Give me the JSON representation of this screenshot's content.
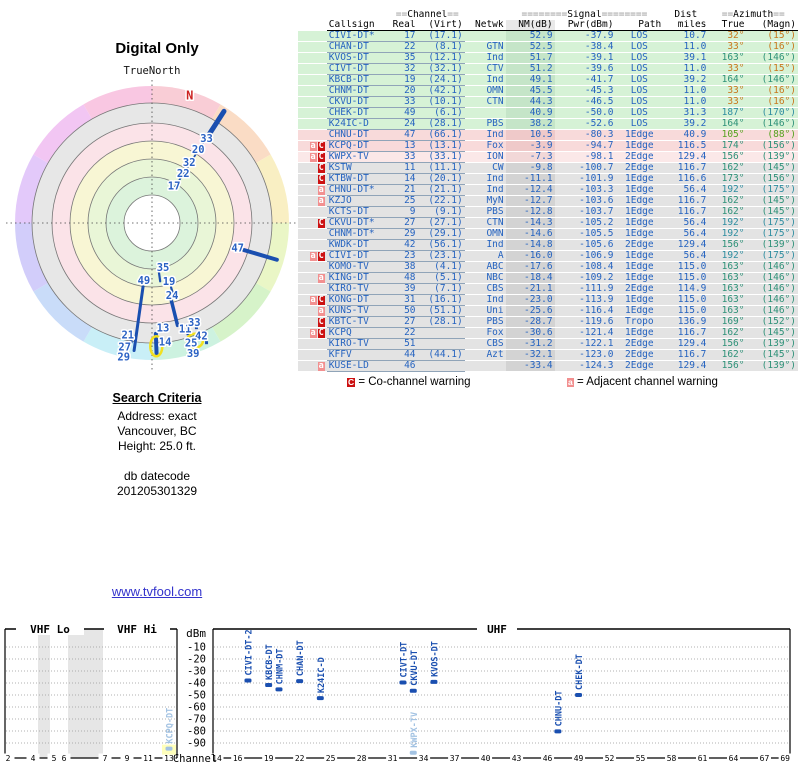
{
  "page_title": "Digital Only",
  "radar_header": {
    "true_north": "TrueNorth",
    "magnetic_north": "N"
  },
  "search_criteria": {
    "heading": "Search Criteria",
    "address_line": "Address: exact",
    "city_line": "Vancouver, BC",
    "height_line": "Height: 25.0 ft."
  },
  "datecode": {
    "line1": "db datecode",
    "line2": "201205301329"
  },
  "link": {
    "text": "www.tvfool.com"
  },
  "table": {
    "header": {
      "eq2": "==",
      "eq8": "========",
      "channel": "Channel",
      "signal": "Signal",
      "dist": "Dist",
      "azimuth": "Azimuth",
      "callsign": "Callsign",
      "real": "Real",
      "virt": "(Virt)",
      "netwk": "Netwk",
      "nm": "NM(dB)",
      "pwr": "Pwr(dBm)",
      "path": "Path",
      "miles": "miles",
      "true": "True",
      "magn": "(Magn)"
    },
    "rows": [
      {
        "warn": "",
        "callsign": "CIVI-DT*",
        "real": "17",
        "virt": "(17.1)",
        "netwk": "",
        "nm": "52.9",
        "pwr": "-37.9",
        "path": "LOS",
        "miles": "10.7",
        "true": "32°",
        "magn": "(15°)",
        "band": "green",
        "azc": "orange"
      },
      {
        "warn": "",
        "callsign": "CHAN-DT",
        "real": "22",
        "virt": "(8.1)",
        "netwk": "GTN",
        "nm": "52.5",
        "pwr": "-38.4",
        "path": "LOS",
        "miles": "11.0",
        "true": "33°",
        "magn": "(16°)",
        "band": "green",
        "azc": "orange"
      },
      {
        "warn": "",
        "callsign": "KVOS-DT",
        "real": "35",
        "virt": "(12.1)",
        "netwk": "Ind",
        "nm": "51.7",
        "pwr": "-39.1",
        "path": "LOS",
        "miles": "39.1",
        "true": "163°",
        "magn": "(146°)",
        "band": "green",
        "azc": "teal"
      },
      {
        "warn": "",
        "callsign": "CIVT-DT",
        "real": "32",
        "virt": "(32.1)",
        "netwk": "CTV",
        "nm": "51.2",
        "pwr": "-39.6",
        "path": "LOS",
        "miles": "11.0",
        "true": "33°",
        "magn": "(15°)",
        "band": "green",
        "azc": "orange"
      },
      {
        "warn": "",
        "callsign": "KBCB-DT",
        "real": "19",
        "virt": "(24.1)",
        "netwk": "Ind",
        "nm": "49.1",
        "pwr": "-41.7",
        "path": "LOS",
        "miles": "39.2",
        "true": "164°",
        "magn": "(146°)",
        "band": "green",
        "azc": "teal"
      },
      {
        "warn": "",
        "callsign": "CHNM-DT",
        "real": "20",
        "virt": "(42.1)",
        "netwk": "OMN",
        "nm": "45.5",
        "pwr": "-45.3",
        "path": "LOS",
        "miles": "11.0",
        "true": "33°",
        "magn": "(16°)",
        "band": "green",
        "azc": "orange"
      },
      {
        "warn": "",
        "callsign": "CKVU-DT",
        "real": "33",
        "virt": "(10.1)",
        "netwk": "CTN",
        "nm": "44.3",
        "pwr": "-46.5",
        "path": "LOS",
        "miles": "11.0",
        "true": "33°",
        "magn": "(16°)",
        "band": "green",
        "azc": "orange"
      },
      {
        "warn": "",
        "callsign": "CHEK-DT",
        "real": "49",
        "virt": "(6.1)",
        "netwk": "",
        "nm": "40.9",
        "pwr": "-50.0",
        "path": "LOS",
        "miles": "31.3",
        "true": "187°",
        "magn": "(170°)",
        "band": "green",
        "azc": "tealblue"
      },
      {
        "warn": "",
        "callsign": "K24IC-D",
        "real": "24",
        "virt": "(28.1)",
        "netwk": "PBS",
        "nm": "38.2",
        "pwr": "-52.6",
        "path": "LOS",
        "miles": "39.2",
        "true": "164°",
        "magn": "(146°)",
        "band": "green",
        "azc": "teal"
      },
      {
        "warn": "",
        "callsign": "CHNU-DT",
        "real": "47",
        "virt": "(66.1)",
        "netwk": "Ind",
        "nm": "10.5",
        "pwr": "-80.3",
        "path": "1Edge",
        "miles": "40.9",
        "true": "105°",
        "magn": "(88°)",
        "band": "pink",
        "azc": "green"
      },
      {
        "warn": "aC",
        "callsign": "KCPQ-DT",
        "real": "13",
        "virt": "(13.1)",
        "netwk": "Fox",
        "nm": "-3.9",
        "pwr": "-94.7",
        "path": "1Edge",
        "miles": "116.5",
        "true": "174°",
        "magn": "(156°)",
        "band": "pink",
        "azc": "teal"
      },
      {
        "warn": "aC",
        "callsign": "KWPX-TV",
        "real": "33",
        "virt": "(33.1)",
        "netwk": "ION",
        "nm": "-7.3",
        "pwr": "-98.1",
        "path": "2Edge",
        "miles": "129.4",
        "true": "156°",
        "magn": "(139°)",
        "band": "pink2",
        "azc": "teal"
      },
      {
        "warn": "C",
        "callsign": "KSTW",
        "real": "11",
        "virt": "(11.1)",
        "netwk": "CW",
        "nm": "-9.8",
        "pwr": "-100.7",
        "path": "2Edge",
        "miles": "116.7",
        "true": "162°",
        "magn": "(145°)",
        "band": "gray",
        "azc": "teal"
      },
      {
        "warn": "C",
        "callsign": "KTBW-DT",
        "real": "14",
        "virt": "(20.1)",
        "netwk": "Ind",
        "nm": "-11.1",
        "pwr": "-101.9",
        "path": "1Edge",
        "miles": "116.6",
        "true": "173°",
        "magn": "(156°)",
        "band": "gray",
        "azc": "teal"
      },
      {
        "warn": "a",
        "callsign": "CHNU-DT*",
        "real": "21",
        "virt": "(21.1)",
        "netwk": "Ind",
        "nm": "-12.4",
        "pwr": "-103.3",
        "path": "1Edge",
        "miles": "56.4",
        "true": "192°",
        "magn": "(175°)",
        "band": "gray",
        "azc": "tealblue"
      },
      {
        "warn": "a",
        "callsign": "KZJO",
        "real": "25",
        "virt": "(22.1)",
        "netwk": "MyN",
        "nm": "-12.7",
        "pwr": "-103.6",
        "path": "1Edge",
        "miles": "116.7",
        "true": "162°",
        "magn": "(145°)",
        "band": "gray",
        "azc": "teal"
      },
      {
        "warn": "",
        "callsign": "KCTS-DT",
        "real": "9",
        "virt": "(9.1)",
        "netwk": "PBS",
        "nm": "-12.8",
        "pwr": "-103.7",
        "path": "1Edge",
        "miles": "116.7",
        "true": "162°",
        "magn": "(145°)",
        "band": "gray",
        "azc": "teal"
      },
      {
        "warn": "C",
        "callsign": "CKVU-DT*",
        "real": "27",
        "virt": "(27.1)",
        "netwk": "CTN",
        "nm": "-14.3",
        "pwr": "-105.2",
        "path": "1Edge",
        "miles": "56.4",
        "true": "192°",
        "magn": "(175°)",
        "band": "gray",
        "azc": "tealblue"
      },
      {
        "warn": "",
        "callsign": "CHNM-DT*",
        "real": "29",
        "virt": "(29.1)",
        "netwk": "OMN",
        "nm": "-14.6",
        "pwr": "-105.5",
        "path": "1Edge",
        "miles": "56.4",
        "true": "192°",
        "magn": "(175°)",
        "band": "gray",
        "azc": "tealblue"
      },
      {
        "warn": "",
        "callsign": "KWDK-DT",
        "real": "42",
        "virt": "(56.1)",
        "netwk": "Ind",
        "nm": "-14.8",
        "pwr": "-105.6",
        "path": "2Edge",
        "miles": "129.4",
        "true": "156°",
        "magn": "(139°)",
        "band": "gray",
        "azc": "teal"
      },
      {
        "warn": "aC",
        "callsign": "CIVI-DT",
        "real": "23",
        "virt": "(23.1)",
        "netwk": "A",
        "nm": "-16.0",
        "pwr": "-106.9",
        "path": "1Edge",
        "miles": "56.4",
        "true": "192°",
        "magn": "(175°)",
        "band": "gray",
        "azc": "tealblue"
      },
      {
        "warn": "",
        "callsign": "KOMO-TV",
        "real": "38",
        "virt": "(4.1)",
        "netwk": "ABC",
        "nm": "-17.6",
        "pwr": "-108.4",
        "path": "1Edge",
        "miles": "115.0",
        "true": "163°",
        "magn": "(146°)",
        "band": "gray",
        "azc": "teal"
      },
      {
        "warn": "a",
        "callsign": "KING-DT",
        "real": "48",
        "virt": "(5.1)",
        "netwk": "NBC",
        "nm": "-18.4",
        "pwr": "-109.2",
        "path": "1Edge",
        "miles": "115.0",
        "true": "163°",
        "magn": "(146°)",
        "band": "gray",
        "azc": "teal"
      },
      {
        "warn": "",
        "callsign": "KIRO-TV",
        "real": "39",
        "virt": "(7.1)",
        "netwk": "CBS",
        "nm": "-21.1",
        "pwr": "-111.9",
        "path": "2Edge",
        "miles": "114.9",
        "true": "163°",
        "magn": "(146°)",
        "band": "gray",
        "azc": "teal"
      },
      {
        "warn": "aC",
        "callsign": "KONG-DT",
        "real": "31",
        "virt": "(16.1)",
        "netwk": "Ind",
        "nm": "-23.0",
        "pwr": "-113.9",
        "path": "1Edge",
        "miles": "115.0",
        "true": "163°",
        "magn": "(146°)",
        "band": "gray",
        "azc": "teal"
      },
      {
        "warn": "a",
        "callsign": "KUNS-TV",
        "real": "50",
        "virt": "(51.1)",
        "netwk": "Uni",
        "nm": "-25.6",
        "pwr": "-116.4",
        "path": "1Edge",
        "miles": "115.0",
        "true": "163°",
        "magn": "(146°)",
        "band": "gray",
        "azc": "teal"
      },
      {
        "warn": "C",
        "callsign": "KBTC-TV",
        "real": "27",
        "virt": "(28.1)",
        "netwk": "PBS",
        "nm": "-28.7",
        "pwr": "-119.6",
        "path": "Tropo",
        "miles": "136.9",
        "true": "169°",
        "magn": "(152°)",
        "band": "gray",
        "azc": "teal"
      },
      {
        "warn": "aC",
        "callsign": "KCPQ",
        "real": "22",
        "virt": "",
        "netwk": "Fox",
        "nm": "-30.6",
        "pwr": "-121.4",
        "path": "1Edge",
        "miles": "116.7",
        "true": "162°",
        "magn": "(145°)",
        "band": "gray",
        "azc": "teal"
      },
      {
        "warn": "",
        "callsign": "KIRO-TV",
        "real": "51",
        "virt": "",
        "netwk": "CBS",
        "nm": "-31.2",
        "pwr": "-122.1",
        "path": "2Edge",
        "miles": "129.4",
        "true": "156°",
        "magn": "(139°)",
        "band": "gray",
        "azc": "teal"
      },
      {
        "warn": "",
        "callsign": "KFFV",
        "real": "44",
        "virt": "(44.1)",
        "netwk": "Azt",
        "nm": "-32.1",
        "pwr": "-123.0",
        "path": "2Edge",
        "miles": "116.7",
        "true": "162°",
        "magn": "(145°)",
        "band": "gray",
        "azc": "teal"
      },
      {
        "warn": "a",
        "callsign": "KUSE-LD",
        "real": "46",
        "virt": "",
        "netwk": "",
        "nm": "-33.4",
        "pwr": "-124.3",
        "path": "2Edge",
        "miles": "129.4",
        "true": "156°",
        "magn": "(139°)",
        "band": "gray",
        "azc": "teal"
      }
    ],
    "colors": {
      "row_bg": {
        "green": "#d6f2d6",
        "pink": "#f8dada",
        "pink2": "#fbe8e8",
        "gray": "#e3e3e3"
      },
      "nm_bg": {
        "green": "#c5e5c8",
        "pink": "#efc9c9",
        "pink2": "#f2d8d8",
        "gray": "#d3d3d3"
      },
      "azimuth": {
        "orange": "#c8771c",
        "teal": "#2e9178",
        "tealblue": "#2e8da0",
        "green": "#55a31f"
      },
      "text_blue": "#2563c0",
      "badge_c": "#cc1111",
      "badge_a": "#f29090"
    }
  },
  "legend": {
    "co_badge": "C",
    "co_text": "= Co-channel warning",
    "adj_badge": "a",
    "adj_text": "= Adjacent channel warning"
  },
  "chart_data": [
    {
      "type": "scatter",
      "name": "azimuth-radar",
      "title": "Digital Only",
      "north_label": "TrueNorth",
      "magnetic_north": {
        "label": "N",
        "az": 16.5,
        "r": 0.97,
        "color": "#cc2222"
      },
      "rainbow_colors": [
        "#f9cdd6",
        "#fadcc5",
        "#f9efc3",
        "#eaf6c6",
        "#d6f3c9",
        "#cdf2e0",
        "#c9eff7",
        "#c9dcf9",
        "#d2cdfa",
        "#e3c9fa",
        "#f2c6f3",
        "#f9c7e2"
      ],
      "rings": [
        {
          "r": 120,
          "color": "#e7e7e7"
        },
        {
          "r": 100,
          "color": "#fbe3e8"
        },
        {
          "r": 82,
          "color": "#f8f6d4"
        },
        {
          "r": 64,
          "color": "#e9f6d7"
        },
        {
          "r": 46,
          "color": "#dcf3dc"
        },
        {
          "r": 28,
          "color": "#ffffff"
        }
      ],
      "labels": [
        {
          "text": "33",
          "az": 32.8,
          "r": 0.735
        },
        {
          "text": "20",
          "az": 32.2,
          "r": 0.633
        },
        {
          "text": "32",
          "az": 31.7,
          "r": 0.517
        },
        {
          "text": "22",
          "az": 32.3,
          "r": 0.427
        },
        {
          "text": "17",
          "az": 30.7,
          "r": 0.316
        },
        {
          "text": "47",
          "az": 106.4,
          "r": 0.652
        },
        {
          "text": "35",
          "az": 166.0,
          "r": 0.334
        },
        {
          "text": "49",
          "az": 188.0,
          "r": 0.423
        },
        {
          "text": "19",
          "az": 163.7,
          "r": 0.444
        },
        {
          "text": "24",
          "az": 164.5,
          "r": 0.549
        },
        {
          "text": "13",
          "az": 174.0,
          "r": 0.769
        },
        {
          "text": "11",
          "az": 162.6,
          "r": 0.809
        },
        {
          "text": "33",
          "az": 157.0,
          "r": 0.79
        },
        {
          "text": "42",
          "az": 156.4,
          "r": 0.9
        },
        {
          "text": "21",
          "az": 192.2,
          "r": 0.835
        },
        {
          "text": "14",
          "az": 173.7,
          "r": 0.873
        },
        {
          "text": "25",
          "az": 161.9,
          "r": 0.92
        },
        {
          "text": "27",
          "az": 192.4,
          "r": 0.926
        },
        {
          "text": "29",
          "az": 191.9,
          "r": 1.0
        },
        {
          "text": "39",
          "az": 162.5,
          "r": 1.0
        }
      ],
      "spokes": [
        {
          "az": 32.8,
          "r1": 0.735,
          "r2": 0.97,
          "w": 5
        },
        {
          "az": 32.5,
          "r1": 0.3,
          "r2": 0.72,
          "w": 1.8
        },
        {
          "az": 106.4,
          "r1": 0.7,
          "r2": 0.95,
          "w": 4
        },
        {
          "az": 188.0,
          "r1": 0.47,
          "r2": 0.94,
          "w": 3
        },
        {
          "az": 166.0,
          "r1": 0.58,
          "r2": 0.77,
          "w": 3.5
        },
        {
          "az": 178.0,
          "r1": 0.81,
          "r2": 0.95,
          "w": 4
        },
        {
          "az": 172.0,
          "r1": 0.36,
          "r2": 0.43,
          "w": 2.2
        },
        {
          "az": 163.5,
          "r1": 0.49,
          "r2": 0.54,
          "w": 2.2
        }
      ],
      "dots": [
        {
          "az": 190.0,
          "r": 0.88
        },
        {
          "az": 157.0,
          "r": 0.83
        },
        {
          "az": 155.5,
          "r": 0.96
        },
        {
          "az": 162.0,
          "r": 0.85
        },
        {
          "az": 160.5,
          "r": 0.975
        }
      ],
      "highlights": [
        {
          "az": 178.0,
          "r": 0.9,
          "rx": 6,
          "ry": 10
        },
        {
          "az": 160.0,
          "r": 0.915,
          "rx": 8,
          "ry": 7
        }
      ],
      "spoke_color": "#1a4fb0",
      "label_color": "#2b62c4",
      "highlight_color": "#f2e020"
    },
    {
      "type": "scatter",
      "name": "rf-spectrum",
      "ylabel": "dBm",
      "xlabel": "Channel",
      "band_labels": {
        "vhf_lo": "VHF Lo",
        "vhf_hi": "VHF Hi",
        "uhf": "UHF"
      },
      "yticks": [
        -10,
        -20,
        -30,
        -40,
        -50,
        -60,
        -70,
        -80,
        -90
      ],
      "ylim": [
        -95,
        -5
      ],
      "vhf_ticks": [
        {
          "ch": 2,
          "x": 8
        },
        {
          "ch": 4,
          "x": 33
        },
        {
          "ch": 5,
          "x": 54
        },
        {
          "ch": 6,
          "x": 64
        },
        {
          "ch": 7,
          "x": 105
        },
        {
          "ch": 9,
          "x": 127
        },
        {
          "ch": 11,
          "x": 148
        },
        {
          "ch": 13,
          "x": 169
        }
      ],
      "uhf_ticks": [
        14,
        16,
        19,
        22,
        25,
        28,
        31,
        34,
        37,
        40,
        43,
        46,
        49,
        52,
        55,
        58,
        61,
        64,
        67,
        69
      ],
      "gray_bands": [
        [
          38,
          50
        ],
        [
          68,
          103
        ]
      ],
      "markers": [
        {
          "callsign": "CIVI-DT-2",
          "ch": 17,
          "dbm": -37.9,
          "band": "uhf",
          "weak": false
        },
        {
          "callsign": "KBCB-DT",
          "ch": 19,
          "dbm": -41.7,
          "band": "uhf",
          "weak": false
        },
        {
          "callsign": "CHNM-DT",
          "ch": 20,
          "dbm": -45.3,
          "band": "uhf",
          "weak": false
        },
        {
          "callsign": "CHAN-DT",
          "ch": 22,
          "dbm": -38.4,
          "band": "uhf",
          "weak": false
        },
        {
          "callsign": "K24IC-D",
          "ch": 24,
          "dbm": -52.6,
          "band": "uhf",
          "weak": false
        },
        {
          "callsign": "CIVT-DT",
          "ch": 32,
          "dbm": -39.6,
          "band": "uhf",
          "weak": false
        },
        {
          "callsign": "CKVU-DT",
          "ch": 33,
          "dbm": -46.5,
          "band": "uhf",
          "weak": false
        },
        {
          "callsign": "KVOS-DT",
          "ch": 35,
          "dbm": -39.1,
          "band": "uhf",
          "weak": false
        },
        {
          "callsign": "KWPX-TV",
          "ch": 33,
          "dbm": -98.1,
          "band": "uhf",
          "weak": true
        },
        {
          "callsign": "CHNU-DT",
          "ch": 47,
          "dbm": -80.3,
          "band": "uhf",
          "weak": false
        },
        {
          "callsign": "CHEK-DT",
          "ch": 49,
          "dbm": -50.0,
          "band": "uhf",
          "weak": false
        },
        {
          "callsign": "KCPQ-DT",
          "ch": 13,
          "dbm": -94.7,
          "band": "vhf",
          "weak": true,
          "highlight": true
        }
      ],
      "marker_color": "#1a4fb0",
      "weak_color": "#a3c3e3",
      "highlight_color": "#ffffbb"
    }
  ]
}
